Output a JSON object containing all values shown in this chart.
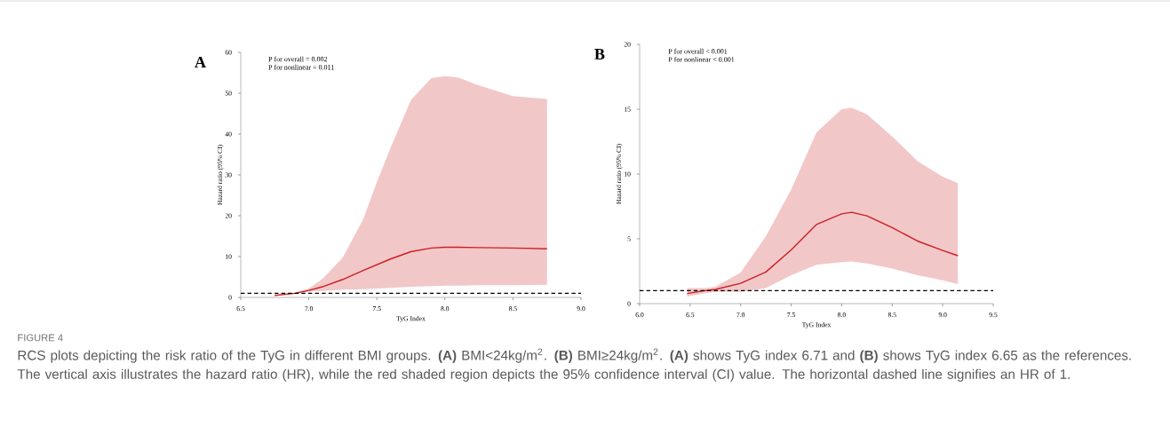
{
  "chart_data": [
    {
      "type": "line",
      "title": "A",
      "xlabel": "TyG Index",
      "ylabel": "Hazard ratio (95% CI)",
      "xlim": [
        6.5,
        9.0
      ],
      "xticks": [
        6.5,
        {
          "value": 7,
          "label": "7.0"
        },
        7.5,
        {
          "value": 8,
          "label": "8.0"
        },
        8.5,
        {
          "value": 9,
          "label": "9.0"
        }
      ],
      "ylim": [
        0,
        60
      ],
      "yticks": [
        0,
        10,
        20,
        30,
        40,
        50,
        60
      ],
      "annotations": [
        "P for overall = 0.002",
        "P for nonlinear = 0.011"
      ],
      "ref_lines": [
        {
          "axis": "y",
          "value": 1,
          "line_style": "dashed",
          "color": "#000000"
        }
      ],
      "series": [
        {
          "color": "#cc1f24",
          "x": [
            6.75,
            6.9,
            7.0,
            7.1,
            7.25,
            7.4,
            7.5,
            7.6,
            7.75,
            7.9,
            8.0,
            8.1,
            8.25,
            8.5,
            8.75
          ],
          "values": [
            0.5,
            1.0,
            1.7,
            2.6,
            4.4,
            6.6,
            8.0,
            9.4,
            11.2,
            12.1,
            12.3,
            12.3,
            12.2,
            12.1,
            11.9
          ],
          "lower": [
            0.4,
            0.9,
            1.4,
            1.6,
            1.9,
            2.0,
            2.2,
            2.35,
            2.6,
            2.8,
            2.9,
            2.9,
            3.0,
            3.0,
            3.1
          ],
          "upper": [
            0.6,
            1.2,
            2.2,
            4.5,
            9.8,
            19.2,
            28.2,
            36.6,
            48.3,
            53.7,
            54.2,
            53.8,
            51.9,
            49.3,
            48.6
          ]
        }
      ]
    },
    {
      "type": "line",
      "title": "B",
      "xlabel": "TyG Index",
      "ylabel": "Hazard ratio (95% CI)",
      "xlim": [
        6.0,
        9.5
      ],
      "xticks": [
        {
          "value": 6,
          "label": "6.0"
        },
        6.5,
        {
          "value": 7,
          "label": "7.0"
        },
        7.5,
        {
          "value": 8,
          "label": "8.0"
        },
        8.5,
        {
          "value": 9,
          "label": "9.0"
        },
        9.5
      ],
      "ylim": [
        0,
        20
      ],
      "yticks": [
        0,
        5,
        10,
        15,
        20
      ],
      "annotations": [
        "P for overall < 0.001",
        "P for nonlinear < 0.001"
      ],
      "ref_lines": [
        {
          "axis": "y",
          "value": 1,
          "line_style": "dashed",
          "color": "#000000"
        }
      ],
      "series": [
        {
          "color": "#cc1f24",
          "x": [
            6.47,
            6.65,
            6.75,
            7.0,
            7.25,
            7.5,
            7.75,
            8.0,
            8.1,
            8.25,
            8.5,
            8.75,
            9.0,
            9.15
          ],
          "values": [
            0.78,
            1.0,
            1.1,
            1.57,
            2.44,
            4.15,
            6.1,
            6.93,
            7.05,
            6.77,
            5.86,
            4.83,
            4.1,
            3.7
          ],
          "lower": [
            0.55,
            0.8,
            0.9,
            0.9,
            1.2,
            2.2,
            3.0,
            3.2,
            3.25,
            3.1,
            2.7,
            2.2,
            1.8,
            1.5
          ],
          "upper": [
            1.2,
            1.2,
            1.3,
            2.4,
            5.2,
            8.8,
            13.2,
            15.0,
            15.1,
            14.6,
            12.9,
            11.0,
            9.8,
            9.3
          ]
        }
      ]
    },
    {
      "type": "other",
      "title": "FIGURE 4",
      "annotations": [
        "RCS plots depicting the risk ratio of the TyG in different BMI groups. **(A)** BMI<24kg/m$^{2}$. **(B)** BMI≥24kg/m$^{2}$. **(A)** shows TyG index 6.71 and **(B)** shows TyG index 6.65 as the references. The vertical axis illustrates the hazard ratio (HR), while the red shaded region depicts the 95% confidence interval (CI) value. The horizontal dashed line signifies an HR of 1."
      ]
    }
  ]
}
